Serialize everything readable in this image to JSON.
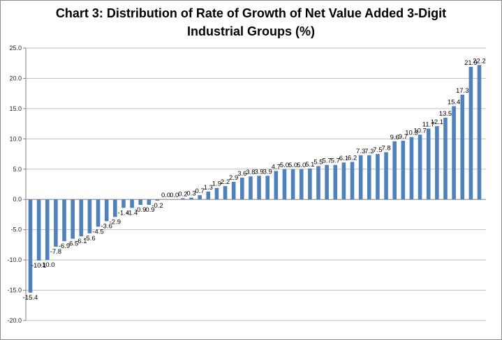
{
  "chart_data": {
    "type": "bar",
    "title_line1": "Chart 3: Distribution of Rate of Growth of Net Value Added 3-Digit",
    "title_line2": "Industrial Groups  (%)",
    "xlabel": "",
    "ylabel": "",
    "ylim": [
      -20,
      25
    ],
    "yticks": [
      "25.0",
      "20.0",
      "15.0",
      "10.0",
      "5.0",
      "0.0",
      "-5.0",
      "-10.0",
      "-15.0",
      "-20.0"
    ],
    "grid": true,
    "legend": "none",
    "bar_color": "#4f81bd",
    "values": [
      -15.4,
      -10.1,
      -10.0,
      -7.8,
      -6.9,
      -6.5,
      -6.1,
      -5.6,
      -4.5,
      -3.6,
      -2.9,
      -1.4,
      -1.4,
      -0.9,
      -0.9,
      -0.2,
      0.0,
      0.0,
      0.2,
      0.3,
      0.7,
      1.3,
      1.9,
      2.2,
      2.9,
      3.6,
      3.8,
      3.9,
      3.9,
      4.7,
      5.0,
      5.0,
      5.0,
      5.1,
      5.5,
      5.7,
      5.7,
      6.1,
      6.2,
      7.3,
      7.3,
      7.5,
      7.8,
      9.6,
      9.7,
      10.3,
      10.7,
      11.7,
      12.1,
      13.5,
      15.4,
      17.3,
      21.9,
      22.2
    ],
    "labels": [
      "-15.4",
      "-10.1",
      "-10.0",
      "-7.8",
      "-6.9",
      "-6.5",
      "-6.1",
      "-5.6",
      "-4.5",
      "-3.6",
      "-2.9",
      "-1.4",
      "-1.4",
      "-0.9",
      "-0.9",
      "-0.2",
      "0.0",
      "0.0",
      "0.2",
      "0.3",
      "0.7",
      "1.3",
      "1.9",
      "2.2",
      "2.9",
      "3.6",
      "3.8",
      "3.9",
      "3.9",
      "4.7",
      "5.0",
      "5.0",
      "5.0",
      "5.1",
      "5.5",
      "5.7",
      "5.7",
      "6.1",
      "6.2",
      "7.3",
      "7.3",
      "7.5",
      "7.8",
      "9.6",
      "9.7",
      "10.3",
      "10.7",
      "11.7",
      "12.1",
      "13.5",
      "15.4",
      "17.3",
      "21.9",
      "22.2"
    ]
  }
}
